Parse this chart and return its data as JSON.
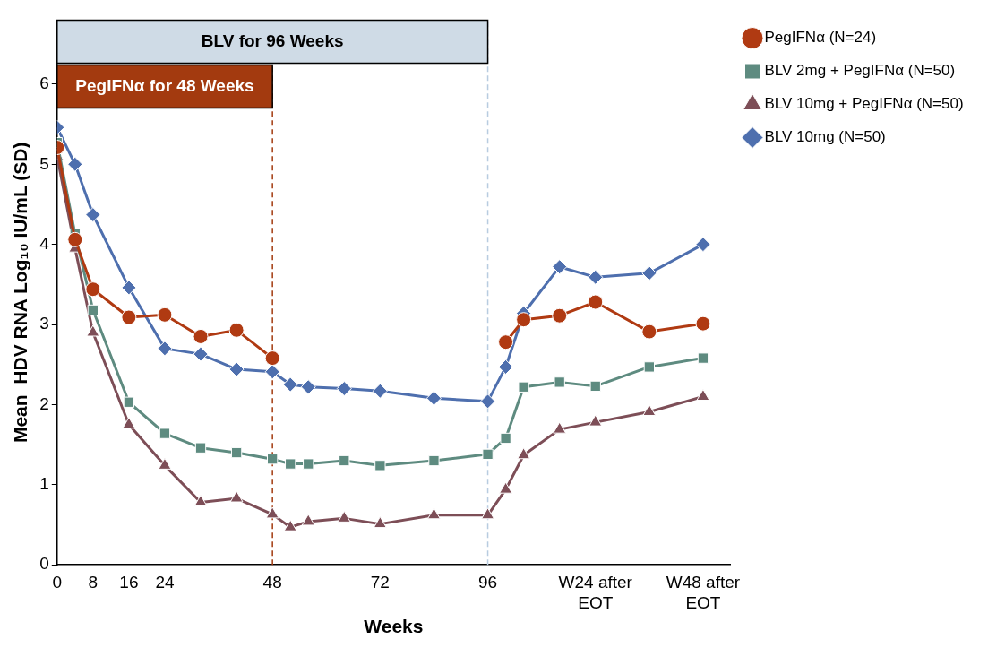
{
  "chart_data": {
    "type": "line",
    "xlabel": "Weeks",
    "ylabel": "Mean  HDV RNA Log₁₀ IU/mL (SD)",
    "xlim": [
      0,
      150
    ],
    "xticks": [
      0,
      8,
      16,
      24,
      48,
      72,
      96,
      {
        "value": 120,
        "label": "W24 after EOT"
      },
      {
        "value": 144,
        "label": "W48 after EOT"
      }
    ],
    "ylim": [
      0,
      6.8
    ],
    "yticks": [
      0,
      1,
      2,
      3,
      4,
      5,
      6
    ],
    "grid": false,
    "legend": "top right",
    "line_style": "solid",
    "bands": [
      {
        "axis": "x",
        "from": 0,
        "to": 96,
        "label": "BLV for 96 Weeks",
        "color": "#cfdbe6"
      },
      {
        "axis": "x",
        "from": 0,
        "to": 48,
        "label": "PegIFNα for 48 Weeks",
        "color": "#a33a0f"
      }
    ],
    "ref_lines": [
      {
        "axis": "x",
        "value": 48,
        "color": "#a33a0f",
        "line_style": "dashed"
      },
      {
        "axis": "x",
        "value": 96,
        "color": "#b8cce0",
        "line_style": "dashed"
      }
    ],
    "series": [
      {
        "name": "PegIFNα (N=24)",
        "color": "#b03a12",
        "marker": "circle",
        "x": [
          0,
          4,
          8,
          16,
          24,
          32,
          40,
          48,
          96,
          100,
          104,
          112,
          120,
          132,
          144
        ],
        "values": [
          5.21,
          4.06,
          3.44,
          3.09,
          3.12,
          2.85,
          2.93,
          2.58,
          null,
          2.78,
          3.06,
          3.11,
          3.28,
          2.91,
          3.01
        ]
      },
      {
        "name": "BLV 2mg + PegIFNα (N=50)",
        "color": "#5e8b80",
        "marker": "square",
        "x": [
          0,
          4,
          8,
          16,
          24,
          32,
          40,
          48,
          52,
          56,
          64,
          72,
          84,
          96,
          100,
          104,
          112,
          120,
          132,
          144
        ],
        "values": [
          5.27,
          4.13,
          3.18,
          2.03,
          1.64,
          1.46,
          1.4,
          1.32,
          1.26,
          1.26,
          1.3,
          1.24,
          1.3,
          1.38,
          1.58,
          2.22,
          2.28,
          2.23,
          2.47,
          2.58
        ]
      },
      {
        "name": "BLV 10mg + PegIFNα (N=50)",
        "color": "#7d4e57",
        "marker": "triangle",
        "x": [
          0,
          4,
          8,
          16,
          24,
          32,
          40,
          48,
          52,
          56,
          64,
          72,
          84,
          96,
          100,
          104,
          112,
          120,
          132,
          144
        ],
        "values": [
          5.1,
          3.95,
          2.9,
          1.75,
          1.24,
          0.78,
          0.83,
          0.63,
          0.47,
          0.54,
          0.58,
          0.51,
          0.62,
          0.62,
          0.94,
          1.37,
          1.69,
          1.78,
          1.91,
          2.1
        ]
      },
      {
        "name": "BLV 10mg (N=50)",
        "color": "#4e6fae",
        "marker": "diamond",
        "x": [
          0,
          4,
          8,
          16,
          24,
          32,
          40,
          48,
          52,
          56,
          64,
          72,
          84,
          96,
          100,
          104,
          112,
          120,
          132,
          144
        ],
        "values": [
          5.46,
          5.0,
          4.37,
          3.46,
          2.7,
          2.63,
          2.44,
          2.41,
          2.25,
          2.22,
          2.2,
          2.17,
          2.08,
          2.04,
          2.47,
          3.14,
          3.72,
          3.59,
          3.64,
          4.0
        ]
      }
    ]
  }
}
